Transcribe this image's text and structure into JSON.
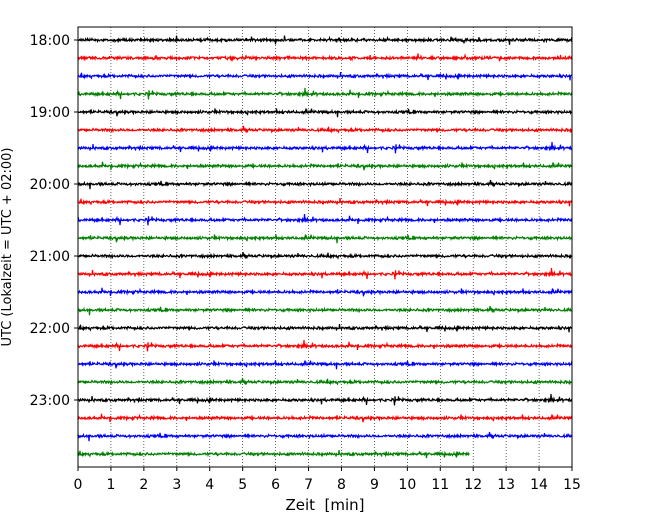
{
  "chart_data": {
    "type": "line",
    "title": "",
    "xlabel": "Zeit  [min]",
    "ylabel": "UTC (Lokalzeit = UTC + 02:00)",
    "xlim": [
      0,
      15
    ],
    "x_ticks": [
      "0",
      "1",
      "2",
      "3",
      "4",
      "5",
      "6",
      "7",
      "8",
      "9",
      "10",
      "11",
      "12",
      "13",
      "14",
      "15"
    ],
    "y_ticks": [
      "18:00",
      "19:00",
      "20:00",
      "21:00",
      "22:00",
      "23:00"
    ],
    "grid": "vertical dotted",
    "colors": [
      "#000000",
      "#ff0000",
      "#0000ff",
      "#008000"
    ],
    "traces": [
      {
        "start": "18:00",
        "end_min": 15
      },
      {
        "start": "18:15",
        "end_min": 15
      },
      {
        "start": "18:30",
        "end_min": 15
      },
      {
        "start": "18:45",
        "end_min": 15
      },
      {
        "start": "19:00",
        "end_min": 15
      },
      {
        "start": "19:15",
        "end_min": 15
      },
      {
        "start": "19:30",
        "end_min": 15
      },
      {
        "start": "19:45",
        "end_min": 15
      },
      {
        "start": "20:00",
        "end_min": 15
      },
      {
        "start": "20:15",
        "end_min": 15
      },
      {
        "start": "20:30",
        "end_min": 15
      },
      {
        "start": "20:45",
        "end_min": 15
      },
      {
        "start": "21:00",
        "end_min": 15
      },
      {
        "start": "21:15",
        "end_min": 15
      },
      {
        "start": "21:30",
        "end_min": 15
      },
      {
        "start": "21:45",
        "end_min": 15
      },
      {
        "start": "22:00",
        "end_min": 15
      },
      {
        "start": "22:15",
        "end_min": 15
      },
      {
        "start": "22:30",
        "end_min": 15
      },
      {
        "start": "22:45",
        "end_min": 15
      },
      {
        "start": "23:00",
        "end_min": 15
      },
      {
        "start": "23:15",
        "end_min": 15
      },
      {
        "start": "23:30",
        "end_min": 15
      },
      {
        "start": "23:45",
        "end_min": 11.9
      }
    ]
  }
}
